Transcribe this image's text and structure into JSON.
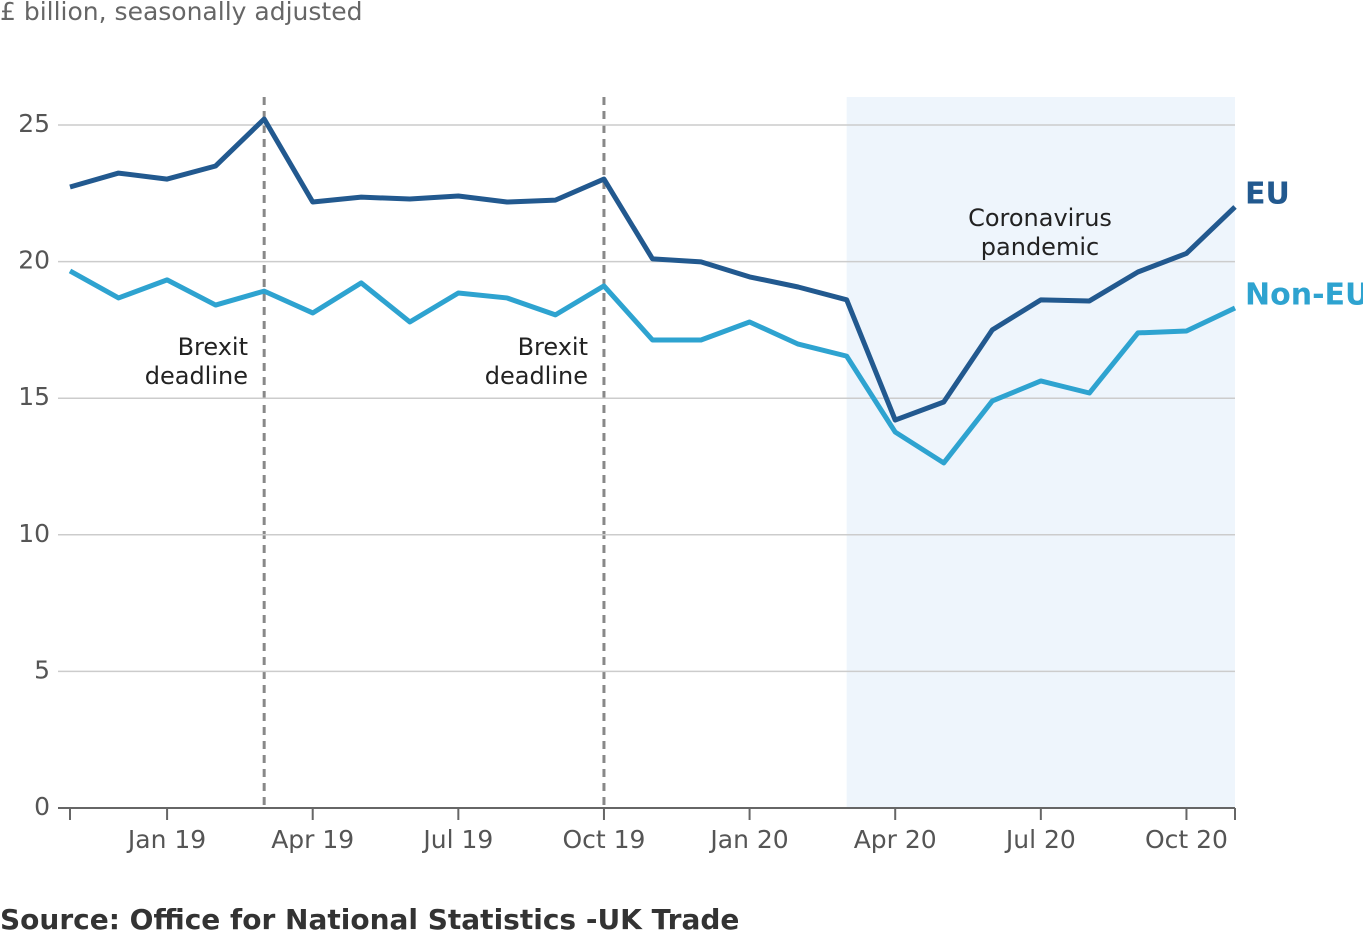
{
  "chart_data": {
    "type": "line",
    "subtitle": "£ billion, seasonally adjusted",
    "source": "Source: Office for National Statistics -UK Trade",
    "categories": [
      null,
      null,
      "Jan 19",
      null,
      null,
      "Apr 19",
      null,
      null,
      "Jul 19",
      null,
      null,
      "Oct 19",
      null,
      null,
      "Jan 20",
      null,
      null,
      "Apr 20",
      null,
      null,
      "Jul 20",
      null,
      null,
      "Oct 20",
      null
    ],
    "series": [
      {
        "name": "EU",
        "color": "#22598f",
        "values": [
          22.73,
          23.24,
          23.02,
          23.5,
          25.22,
          22.18,
          22.36,
          22.29,
          22.4,
          22.18,
          22.25,
          23.02,
          20.1,
          19.99,
          19.44,
          19.07,
          18.6,
          14.2,
          14.86,
          17.5,
          18.6,
          18.56,
          19.62,
          20.3,
          22.0
        ]
      },
      {
        "name": "Non-EU",
        "color": "#2ea3d0",
        "values": [
          19.66,
          18.67,
          19.33,
          18.41,
          18.92,
          18.12,
          19.22,
          17.79,
          18.85,
          18.67,
          18.05,
          19.11,
          17.13,
          17.13,
          17.79,
          16.98,
          16.54,
          13.76,
          12.63,
          14.9,
          15.63,
          15.19,
          17.39,
          17.46,
          18.3
        ]
      }
    ],
    "ylim": [
      0,
      25
    ],
    "yticks": [
      0,
      5,
      10,
      15,
      20,
      25
    ],
    "grid": true,
    "annotations": [
      {
        "lines": [
          "Brexit",
          "deadline"
        ]
      },
      {
        "lines": [
          "Brexit",
          "deadline"
        ]
      },
      {
        "lines": [
          "Coronavirus",
          "pandemic"
        ]
      }
    ]
  }
}
